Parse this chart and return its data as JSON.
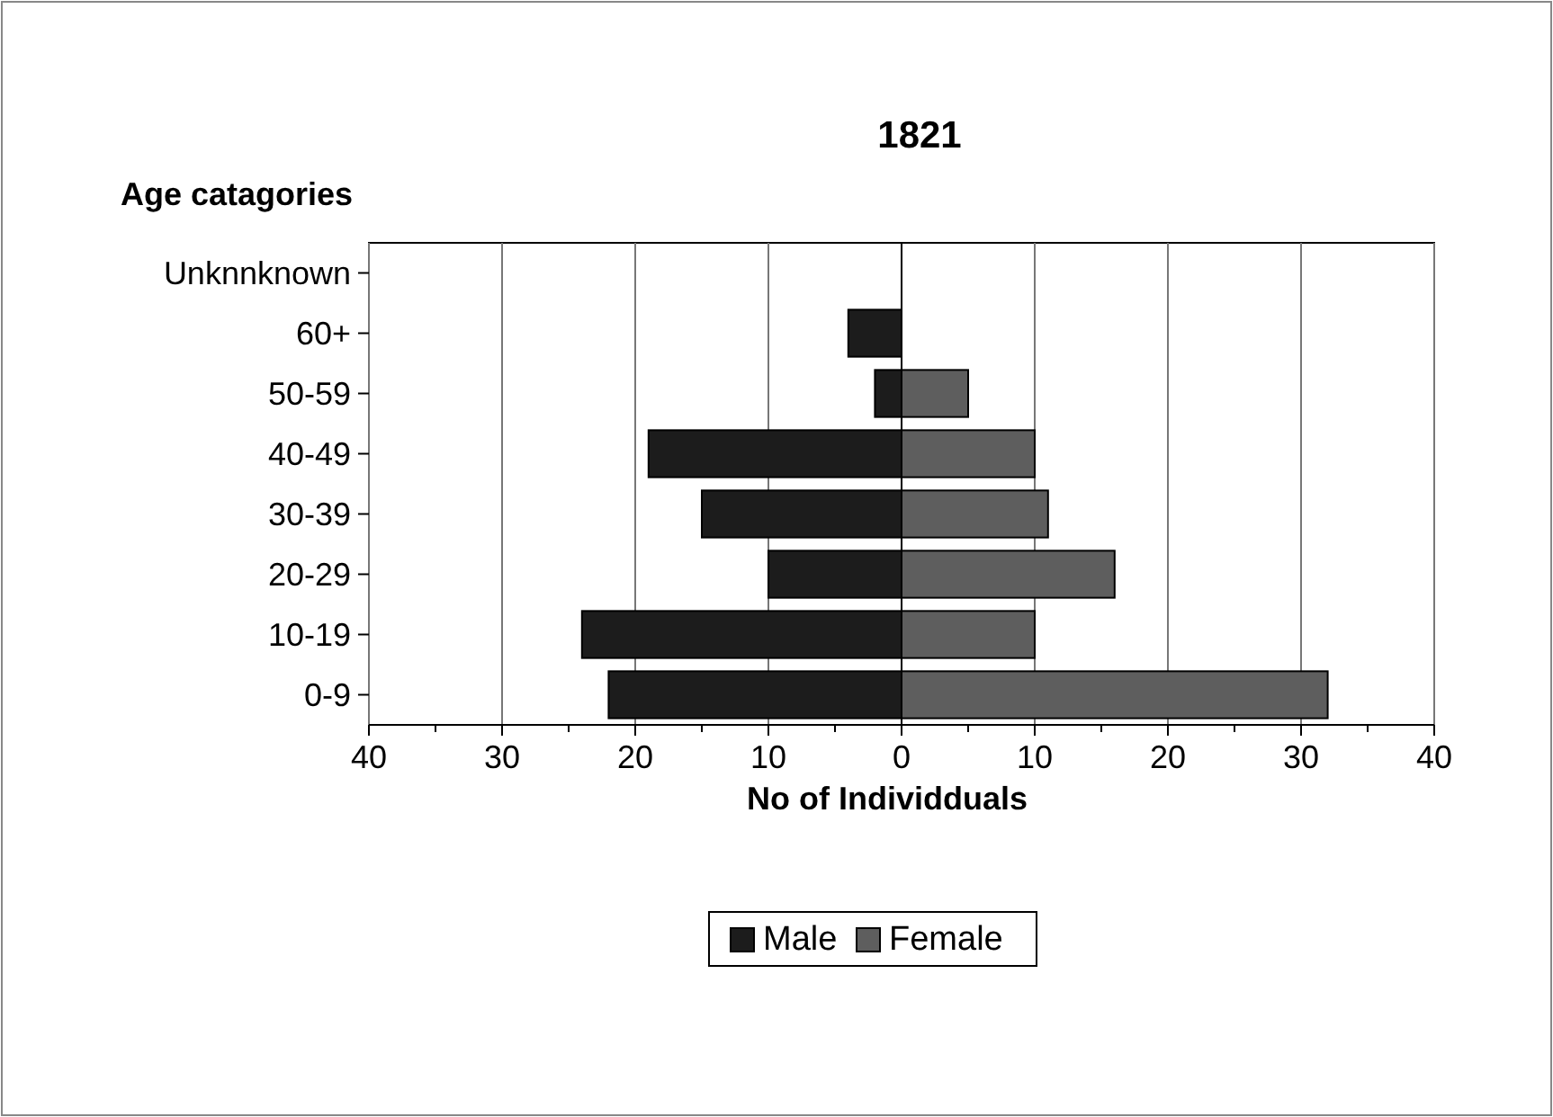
{
  "chart_data": {
    "type": "bar",
    "orientation": "horizontal",
    "stacked": true,
    "title": "1821",
    "ylabel": "Age catagories",
    "xlabel": "No of Individduals",
    "categories": [
      "Unknnknown",
      "60+",
      "50-59",
      "40-49",
      "30-39",
      "20-29",
      "10-19",
      "0-9"
    ],
    "series": [
      {
        "name": "Male",
        "color": "#1c1c1c",
        "values": [
          null,
          -4,
          -2,
          -19,
          -15,
          -10,
          -24,
          -22
        ]
      },
      {
        "name": "Female",
        "color": "#5e5e5e",
        "values": [
          null,
          null,
          5,
          10,
          11,
          16,
          10,
          32
        ]
      }
    ],
    "xlim": [
      -40,
      40
    ],
    "xticks": [
      {
        "value": -40,
        "label": "40"
      },
      {
        "value": -35,
        "label": null
      },
      {
        "value": -30,
        "label": "30"
      },
      {
        "value": -25,
        "label": null
      },
      {
        "value": -20,
        "label": "20"
      },
      {
        "value": -15,
        "label": null
      },
      {
        "value": -10,
        "label": "10"
      },
      {
        "value": -5,
        "label": null
      },
      0,
      {
        "value": 5,
        "label": null
      },
      10,
      {
        "value": 15,
        "label": null
      },
      20,
      {
        "value": 25,
        "label": null
      },
      30,
      {
        "value": 35,
        "label": null
      },
      40
    ],
    "grid": "x",
    "legend": "bottom"
  }
}
